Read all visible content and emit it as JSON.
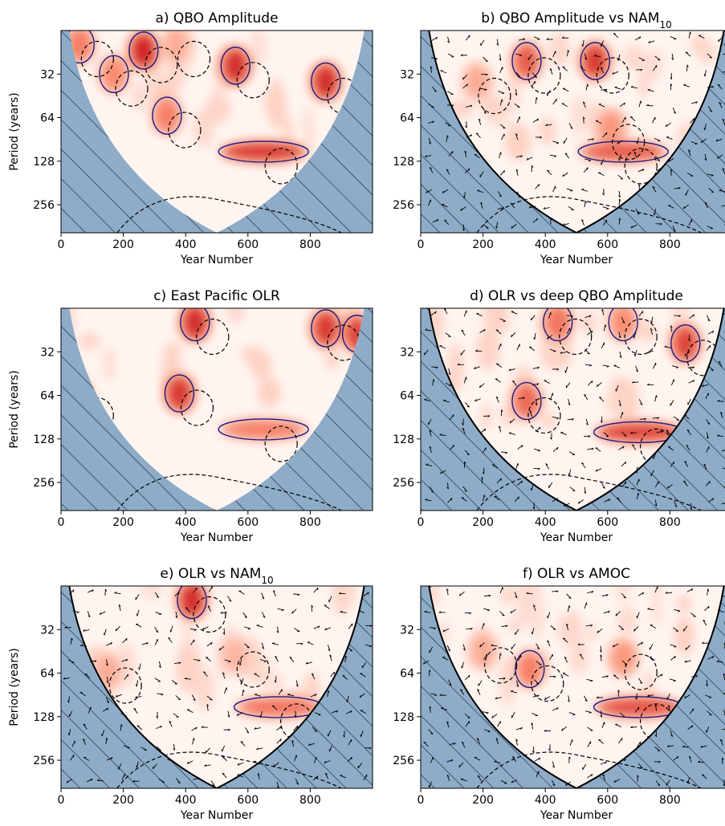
{
  "figure": {
    "xlabel": "Year Number",
    "ylabel": "Period (years)",
    "x_ticks": [
      "0",
      "200",
      "400",
      "600",
      "800"
    ],
    "y_ticks": [
      "32",
      "64",
      "128",
      "256"
    ],
    "colors": {
      "cone_shade": "#8eacc8",
      "hatch": "#1a2a3a",
      "significance_contour": "#1a1a80",
      "dashed_contour": "#000000",
      "power_low": "#fff5f0",
      "power_high": "#cb181d"
    }
  },
  "chart_data": [
    {
      "id": "a",
      "type": "heatmap",
      "title": "a) QBO Amplitude",
      "title_sub": "",
      "kind": "power",
      "xlim": [
        0,
        1000
      ],
      "ylim_period": [
        16,
        400
      ],
      "y_log2": true,
      "hotspots": [
        {
          "x": 60,
          "period": 20,
          "power": 0.55
        },
        {
          "x": 265,
          "period": 22,
          "power": 0.95
        },
        {
          "x": 170,
          "period": 32,
          "power": 0.5
        },
        {
          "x": 370,
          "period": 20,
          "power": 0.35
        },
        {
          "x": 560,
          "period": 28,
          "power": 0.9
        },
        {
          "x": 850,
          "period": 36,
          "power": 0.9
        },
        {
          "x": 340,
          "period": 62,
          "power": 0.55
        },
        {
          "x": 650,
          "period": 110,
          "power": 0.85
        }
      ],
      "show_vectors": false
    },
    {
      "id": "b",
      "type": "heatmap",
      "title": "b) QBO Amplitude vs NAM",
      "title_sub": "10",
      "kind": "coherence",
      "xlim": [
        0,
        1000
      ],
      "ylim_period": [
        16,
        400
      ],
      "y_log2": true,
      "hotspots": [
        {
          "x": 340,
          "period": 26,
          "power": 0.7
        },
        {
          "x": 560,
          "period": 26,
          "power": 0.85
        },
        {
          "x": 180,
          "period": 36,
          "power": 0.35
        },
        {
          "x": 610,
          "period": 75,
          "power": 0.45
        },
        {
          "x": 650,
          "period": 110,
          "power": 0.7
        }
      ],
      "show_vectors": true
    },
    {
      "id": "c",
      "type": "heatmap",
      "title": "c) East Pacific OLR",
      "title_sub": "",
      "kind": "power",
      "xlim": [
        0,
        1000
      ],
      "ylim_period": [
        16,
        400
      ],
      "y_log2": true,
      "hotspots": [
        {
          "x": 430,
          "period": 20,
          "power": 0.9
        },
        {
          "x": 850,
          "period": 22,
          "power": 0.85
        },
        {
          "x": 950,
          "period": 24,
          "power": 0.8
        },
        {
          "x": 380,
          "period": 62,
          "power": 0.85
        },
        {
          "x": 650,
          "period": 110,
          "power": 0.55
        },
        {
          "x": 60,
          "period": 70,
          "power": 0.35
        }
      ],
      "show_vectors": false
    },
    {
      "id": "d",
      "type": "heatmap",
      "title": "d) OLR vs deep QBO Amplitude",
      "title_sub": "",
      "kind": "coherence",
      "xlim": [
        0,
        1000
      ],
      "ylim_period": [
        16,
        400
      ],
      "y_log2": true,
      "hotspots": [
        {
          "x": 850,
          "period": 28,
          "power": 0.8
        },
        {
          "x": 440,
          "period": 20,
          "power": 0.6
        },
        {
          "x": 650,
          "period": 20,
          "power": 0.5
        },
        {
          "x": 340,
          "period": 70,
          "power": 0.65
        },
        {
          "x": 700,
          "period": 115,
          "power": 0.8
        }
      ],
      "show_vectors": true
    },
    {
      "id": "e",
      "type": "heatmap",
      "title": "e) OLR vs NAM",
      "title_sub": "10",
      "kind": "coherence",
      "xlim": [
        0,
        1000
      ],
      "ylim_period": [
        16,
        400
      ],
      "y_log2": true,
      "hotspots": [
        {
          "x": 420,
          "period": 20,
          "power": 0.9
        },
        {
          "x": 150,
          "period": 62,
          "power": 0.35
        },
        {
          "x": 700,
          "period": 110,
          "power": 0.6
        },
        {
          "x": 560,
          "period": 48,
          "power": 0.3
        }
      ],
      "show_vectors": true
    },
    {
      "id": "f",
      "type": "heatmap",
      "title": "f) OLR vs AMOC",
      "title_sub": "",
      "kind": "coherence",
      "xlim": [
        0,
        1000
      ],
      "ylim_period": [
        16,
        400
      ],
      "y_log2": true,
      "hotspots": [
        {
          "x": 350,
          "period": 60,
          "power": 0.55
        },
        {
          "x": 650,
          "period": 50,
          "power": 0.45
        },
        {
          "x": 700,
          "period": 110,
          "power": 0.75
        },
        {
          "x": 200,
          "period": 45,
          "power": 0.35
        }
      ],
      "show_vectors": true
    }
  ]
}
